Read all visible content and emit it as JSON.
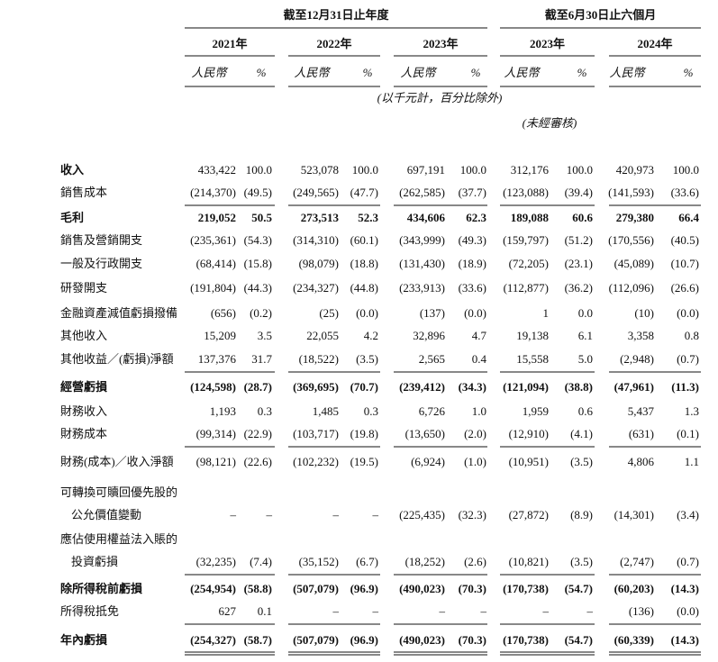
{
  "header": {
    "groups": [
      "截至12月31日止年度",
      "截至6月30日止六個月"
    ],
    "years": [
      "2021年",
      "2022年",
      "2023年",
      "2023年",
      "2024年"
    ],
    "units": [
      [
        "人民幣",
        "%"
      ],
      [
        "人民幣",
        "%"
      ],
      [
        "人民幣",
        "%"
      ],
      [
        "人民幣",
        "%"
      ],
      [
        "人民幣",
        "%"
      ]
    ],
    "note": "(以千元計，百分比除外)",
    "unaudited": "(未經審核)"
  },
  "table": {
    "rows": [
      {
        "label": "收入",
        "bold_label": true,
        "values": [
          "433,422",
          "100.0",
          "523,078",
          "100.0",
          "697,191",
          "100.0",
          "312,176",
          "100.0",
          "420,973",
          "100.0"
        ]
      },
      {
        "label": "銷售成本",
        "values": [
          "(214,370)",
          "(49.5)",
          "(249,565)",
          "(47.7)",
          "(262,585)",
          "(37.7)",
          "(123,088)",
          "(39.4)",
          "(141,593)",
          "(33.6)"
        ]
      },
      {
        "label": "毛利",
        "bold": true,
        "values": [
          "219,052",
          "50.5",
          "273,513",
          "52.3",
          "434,606",
          "62.3",
          "189,088",
          "60.6",
          "279,380",
          "66.4"
        ]
      },
      {
        "label": "銷售及營銷開支",
        "values": [
          "(235,361)",
          "(54.3)",
          "(314,310)",
          "(60.1)",
          "(343,999)",
          "(49.3)",
          "(159,797)",
          "(51.2)",
          "(170,556)",
          "(40.5)"
        ]
      },
      {
        "label": "一般及行政開支",
        "values": [
          "(68,414)",
          "(15.8)",
          "(98,079)",
          "(18.8)",
          "(131,430)",
          "(18.9)",
          "(72,205)",
          "(23.1)",
          "(45,089)",
          "(10.7)"
        ]
      },
      {
        "label": "研發開支",
        "values": [
          "(191,804)",
          "(44.3)",
          "(234,327)",
          "(44.8)",
          "(233,913)",
          "(33.6)",
          "(112,877)",
          "(36.2)",
          "(112,096)",
          "(26.6)"
        ]
      },
      {
        "label": "金融資產減值虧損撥備",
        "values": [
          "(656)",
          "(0.2)",
          "(25)",
          "(0.0)",
          "(137)",
          "(0.0)",
          "1",
          "0.0",
          "(10)",
          "(0.0)"
        ]
      },
      {
        "label": "其他收入",
        "values": [
          "15,209",
          "3.5",
          "22,055",
          "4.2",
          "32,896",
          "4.7",
          "19,138",
          "6.1",
          "3,358",
          "0.8"
        ]
      },
      {
        "label": "其他收益／(虧損)淨額",
        "values": [
          "137,376",
          "31.7",
          "(18,522)",
          "(3.5)",
          "2,565",
          "0.4",
          "15,558",
          "5.0",
          "(2,948)",
          "(0.7)"
        ]
      },
      {
        "label": "經營虧損",
        "bold": true,
        "values": [
          "(124,598)",
          "(28.7)",
          "(369,695)",
          "(70.7)",
          "(239,412)",
          "(34.3)",
          "(121,094)",
          "(38.8)",
          "(47,961)",
          "(11.3)"
        ]
      },
      {
        "label": "財務收入",
        "values": [
          "1,193",
          "0.3",
          "1,485",
          "0.3",
          "6,726",
          "1.0",
          "1,959",
          "0.6",
          "5,437",
          "1.3"
        ]
      },
      {
        "label": "財務成本",
        "values": [
          "(99,314)",
          "(22.9)",
          "(103,717)",
          "(19.8)",
          "(13,650)",
          "(2.0)",
          "(12,910)",
          "(4.1)",
          "(631)",
          "(0.1)"
        ]
      },
      {
        "label": "財務(成本)／收入淨額",
        "values": [
          "(98,121)",
          "(22.6)",
          "(102,232)",
          "(19.5)",
          "(6,924)",
          "(1.0)",
          "(10,951)",
          "(3.5)",
          "4,806",
          "1.1"
        ]
      },
      {
        "label": [
          "可轉換可贖回優先股的",
          "公允價值變動"
        ],
        "values": [
          "–",
          "–",
          "–",
          "–",
          "(225,435)",
          "(32.3)",
          "(27,872)",
          "(8.9)",
          "(14,301)",
          "(3.4)"
        ]
      },
      {
        "label": [
          "應佔使用權益法入賬的",
          "投資虧損"
        ],
        "values": [
          "(32,235)",
          "(7.4)",
          "(35,152)",
          "(6.7)",
          "(18,252)",
          "(2.6)",
          "(10,821)",
          "(3.5)",
          "(2,747)",
          "(0.7)"
        ]
      },
      {
        "label": "除所得稅前虧損",
        "bold": true,
        "values": [
          "(254,954)",
          "(58.8)",
          "(507,079)",
          "(96.9)",
          "(490,023)",
          "(70.3)",
          "(170,738)",
          "(54.7)",
          "(60,203)",
          "(14.3)"
        ]
      },
      {
        "label": "所得稅抵免",
        "values": [
          "627",
          "0.1",
          "–",
          "–",
          "–",
          "–",
          "–",
          "–",
          "(136)",
          "(0.0)"
        ]
      },
      {
        "label": "年內虧損",
        "bold": true,
        "values": [
          "(254,327)",
          "(58.7)",
          "(507,079)",
          "(96.9)",
          "(490,023)",
          "(70.3)",
          "(170,738)",
          "(54.7)",
          "(60,339)",
          "(14.3)"
        ]
      }
    ]
  }
}
